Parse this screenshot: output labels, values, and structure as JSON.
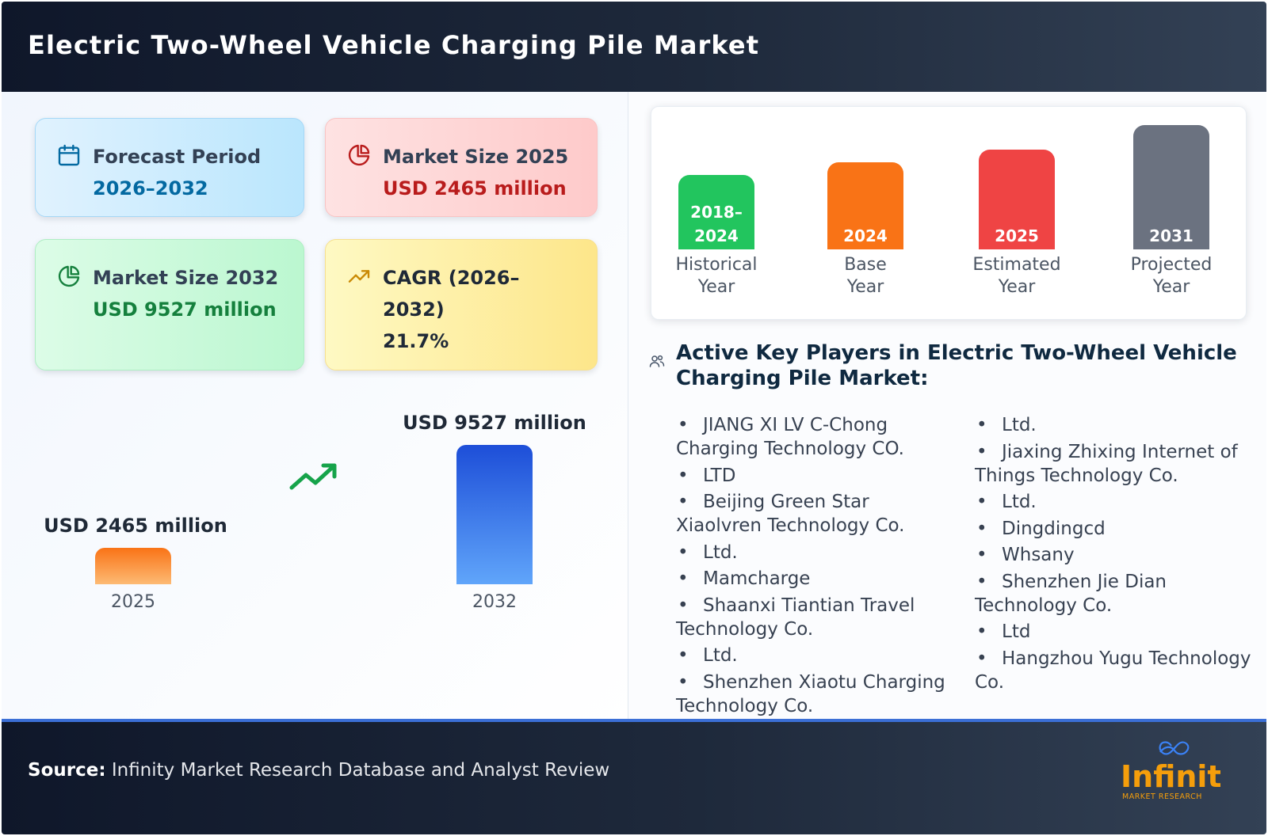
{
  "header": {
    "title": "Electric Two-Wheel Vehicle Charging Pile Market"
  },
  "cards": {
    "forecast": {
      "label": "Forecast Period",
      "value": "2026–2032",
      "icon": "calendar-icon"
    },
    "size2025": {
      "label": "Market Size 2025",
      "value": "USD 2465 million",
      "icon": "pie-chart-icon"
    },
    "size2032": {
      "label": "Market Size 2032",
      "value": "USD 9527 million",
      "icon": "pie-chart-icon"
    },
    "cagr": {
      "label": "CAGR (2026–2032)",
      "value": "21.7%",
      "icon": "trend-up-icon"
    }
  },
  "chart_data": [
    {
      "type": "bar",
      "categories": [
        "2025",
        "2032"
      ],
      "values": [
        2465,
        9527
      ],
      "value_labels": [
        "USD 2465 million",
        "USD 9527 million"
      ],
      "unit": "USD million",
      "colors": [
        "#f97316",
        "#2563eb"
      ]
    },
    {
      "type": "bar",
      "categories": [
        "2018–2024",
        "2024",
        "2025",
        "2031"
      ],
      "labels": [
        "Historical Year",
        "Base Year",
        "Estimated Year",
        "Projected Year"
      ],
      "values": [
        1,
        2,
        3,
        4
      ],
      "colors": [
        "#22c55e",
        "#f97316",
        "#ef4444",
        "#6b7280"
      ]
    }
  ],
  "players": {
    "title": "Active Key Players in Electric Two-Wheel Vehicle Charging Pile Market:",
    "column1": [
      "JIANG XI LV C-Chong Charging Technology CO.",
      "LTD",
      "Beijing Green Star Xiaolvren Technology Co.",
      "Ltd.",
      "Mamcharge",
      "Shaanxi Tiantian Travel Technology Co.",
      "Ltd.",
      "Shenzhen Xiaotu Charging Technology Co."
    ],
    "column2": [
      "Ltd.",
      "Jiaxing Zhixing Internet of Things Technology Co.",
      "Ltd.",
      "Dingdingcd",
      "Whsany",
      "Shenzhen Jie Dian Technology Co.",
      "Ltd",
      "Hangzhou Yugu Technology Co."
    ]
  },
  "footer": {
    "source_label": "Source:",
    "source_text": "Infinity Market Research Database and Analyst Review",
    "logo_text": "Infinity",
    "logo_subtext": "MARKET RESEARCH"
  }
}
